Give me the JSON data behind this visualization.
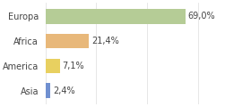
{
  "categories": [
    "Europa",
    "Africa",
    "America",
    "Asia"
  ],
  "values": [
    69.0,
    21.4,
    7.1,
    2.4
  ],
  "labels": [
    "69,0%",
    "21,4%",
    "7,1%",
    "2,4%"
  ],
  "bar_colors": [
    "#b5cc96",
    "#e8b87a",
    "#e8d060",
    "#7090d0"
  ],
  "background_color": "#ffffff",
  "xlim": [
    0,
    100
  ],
  "bar_height": 0.6,
  "label_fontsize": 7,
  "tick_fontsize": 7,
  "grid_color": "#dddddd",
  "grid_xvals": [
    0,
    25,
    50,
    75,
    100
  ]
}
